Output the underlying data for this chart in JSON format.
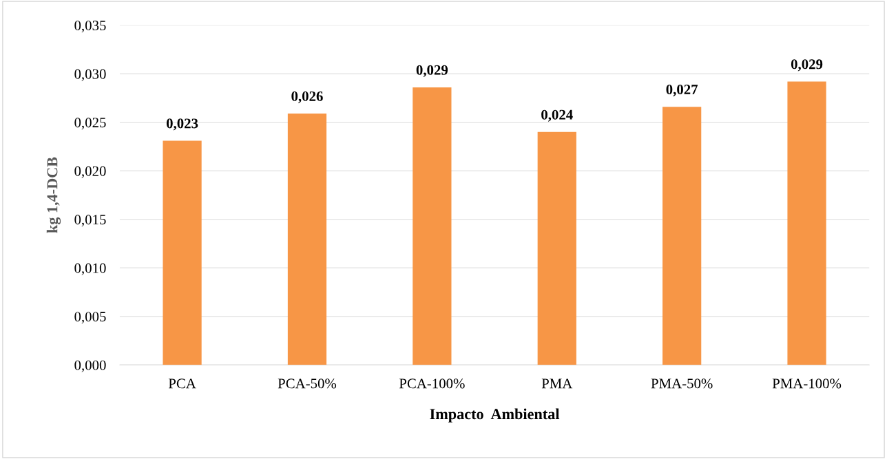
{
  "chart_data": {
    "type": "bar",
    "xlabel": "Impacto  Ambiental",
    "ylabel": "kg 1,4-DCB",
    "categories": [
      "PCA",
      "PCA-50%",
      "PCA-100%",
      "PMA",
      "PMA-50%",
      "PMA-100%"
    ],
    "values": [
      0.0231,
      0.0259,
      0.0286,
      0.024,
      0.0266,
      0.0292
    ],
    "value_labels": [
      "0,023",
      "0,026",
      "0,029",
      "0,024",
      "0,027",
      "0,029"
    ],
    "color": "#f79646",
    "ylim": [
      0,
      0.035
    ],
    "yticks": [
      {
        "value": 0,
        "label": "0,000"
      },
      {
        "value": 0.005,
        "label": "0,005"
      },
      {
        "value": 0.01,
        "label": "0,010"
      },
      {
        "value": 0.015,
        "label": "0,015"
      },
      {
        "value": 0.02,
        "label": "0,020"
      },
      {
        "value": 0.025,
        "label": "0,025"
      },
      {
        "value": 0.03,
        "label": "0,030"
      },
      {
        "value": 0.035,
        "label": "0,035"
      }
    ],
    "grid": "y"
  }
}
